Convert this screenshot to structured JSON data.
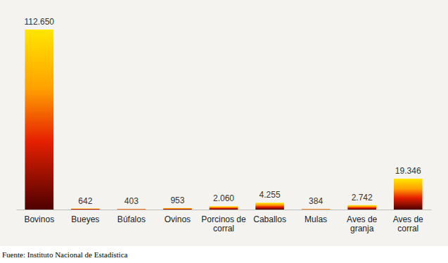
{
  "chart_data": {
    "type": "bar",
    "categories": [
      "Bovinos",
      "Bueyes",
      "Búfalos",
      "Ovinos",
      "Porcinos de corral",
      "Caballos",
      "Mulas",
      "Aves de granja",
      "Aves de corral"
    ],
    "values": [
      112650,
      642,
      403,
      953,
      2060,
      4255,
      384,
      2742,
      19346
    ],
    "value_labels": [
      "112.650",
      "642",
      "403",
      "953",
      "2.060",
      "4.255",
      "384",
      "2.742",
      "19.346"
    ],
    "ylim": [
      0,
      112650
    ],
    "data_labels": true,
    "tick_labels": "x",
    "grid": false,
    "annotations": [
      "Fuente: Instituto Nacional de Estadística"
    ]
  }
}
